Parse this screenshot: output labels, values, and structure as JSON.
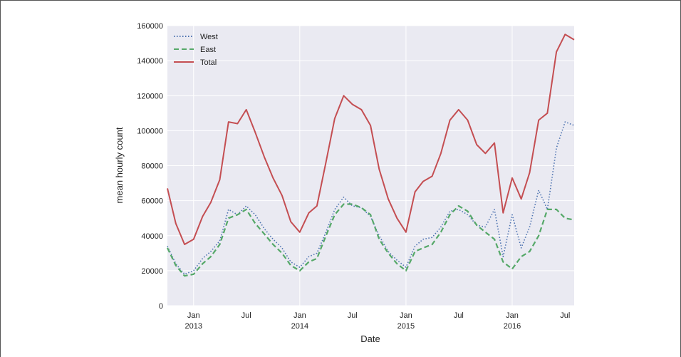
{
  "chart_data": {
    "type": "line",
    "title": "",
    "xlabel": "Date",
    "ylabel": "mean hourly count",
    "xlim": [
      "2012-10-03",
      "2016-08-01"
    ],
    "ylim": [
      0,
      160000
    ],
    "grid": true,
    "legend": "top-left",
    "y_ticks": [
      0,
      20000,
      40000,
      60000,
      80000,
      100000,
      120000,
      140000,
      160000
    ],
    "y_tick_labels": [
      "0",
      "20000",
      "40000",
      "60000",
      "80000",
      "100000",
      "120000",
      "140000",
      "160000"
    ],
    "x_major_ticks": [
      {
        "date": "2013-01-01",
        "label": "Jan",
        "year": "2013"
      },
      {
        "date": "2014-01-01",
        "label": "Jan",
        "year": "2014"
      },
      {
        "date": "2015-01-01",
        "label": "Jan",
        "year": "2015"
      },
      {
        "date": "2016-01-01",
        "label": "Jan",
        "year": "2016"
      }
    ],
    "x_minor_ticks": [
      {
        "date": "2013-07-01",
        "label": "Jul"
      },
      {
        "date": "2014-07-01",
        "label": "Jul"
      },
      {
        "date": "2015-07-01",
        "label": "Jul"
      },
      {
        "date": "2016-07-01",
        "label": "Jul"
      }
    ],
    "x": [
      "2012-10-03",
      "2012-11-01",
      "2012-12-01",
      "2013-01-01",
      "2013-02-01",
      "2013-03-01",
      "2013-04-01",
      "2013-05-01",
      "2013-06-01",
      "2013-07-01",
      "2013-08-01",
      "2013-09-01",
      "2013-10-01",
      "2013-11-01",
      "2013-12-01",
      "2014-01-01",
      "2014-02-01",
      "2014-03-01",
      "2014-04-01",
      "2014-05-01",
      "2014-06-01",
      "2014-07-01",
      "2014-08-01",
      "2014-09-01",
      "2014-10-01",
      "2014-11-01",
      "2014-12-01",
      "2015-01-01",
      "2015-02-01",
      "2015-03-01",
      "2015-04-01",
      "2015-05-01",
      "2015-06-01",
      "2015-07-01",
      "2015-08-01",
      "2015-09-01",
      "2015-10-01",
      "2015-11-01",
      "2015-12-01",
      "2016-01-01",
      "2016-02-01",
      "2016-03-01",
      "2016-04-01",
      "2016-05-01",
      "2016-06-01",
      "2016-07-01",
      "2016-08-01"
    ],
    "series": [
      {
        "name": "West",
        "color": "#4c72b0",
        "style": "dotted",
        "values": [
          34000,
          24000,
          18000,
          20000,
          27000,
          31000,
          37000,
          55000,
          52000,
          57000,
          52000,
          44000,
          38000,
          33000,
          25000,
          22000,
          28000,
          30000,
          42000,
          55000,
          62000,
          57000,
          56000,
          51000,
          40000,
          31000,
          26000,
          22000,
          34000,
          38000,
          39000,
          45000,
          54000,
          55000,
          52000,
          46000,
          45000,
          55000,
          28000,
          52000,
          33000,
          45000,
          66000,
          55000,
          90000,
          105000,
          103000
        ]
      },
      {
        "name": "East",
        "color": "#55a868",
        "style": "dashed",
        "values": [
          33000,
          23000,
          17000,
          18000,
          24000,
          28000,
          35000,
          50000,
          52000,
          55000,
          47000,
          41000,
          35000,
          30000,
          23000,
          20000,
          25000,
          27000,
          40000,
          52000,
          58000,
          58000,
          56000,
          52000,
          38000,
          30000,
          24000,
          20000,
          31000,
          33000,
          35000,
          42000,
          52000,
          57000,
          54000,
          46000,
          42000,
          38000,
          25000,
          21000,
          28000,
          31000,
          40000,
          55000,
          55000,
          50000,
          49000
        ]
      },
      {
        "name": "Total",
        "color": "#c44e52",
        "style": "solid",
        "values": [
          67000,
          47000,
          35000,
          38000,
          51000,
          59000,
          72000,
          105000,
          104000,
          112000,
          99000,
          85000,
          73000,
          63000,
          48000,
          42000,
          53000,
          57000,
          82000,
          107000,
          120000,
          115000,
          112000,
          103000,
          78000,
          61000,
          50000,
          42000,
          65000,
          71000,
          74000,
          87000,
          106000,
          112000,
          106000,
          92000,
          87000,
          93000,
          53000,
          73000,
          61000,
          76000,
          106000,
          110000,
          145000,
          155000,
          152000
        ]
      }
    ]
  }
}
